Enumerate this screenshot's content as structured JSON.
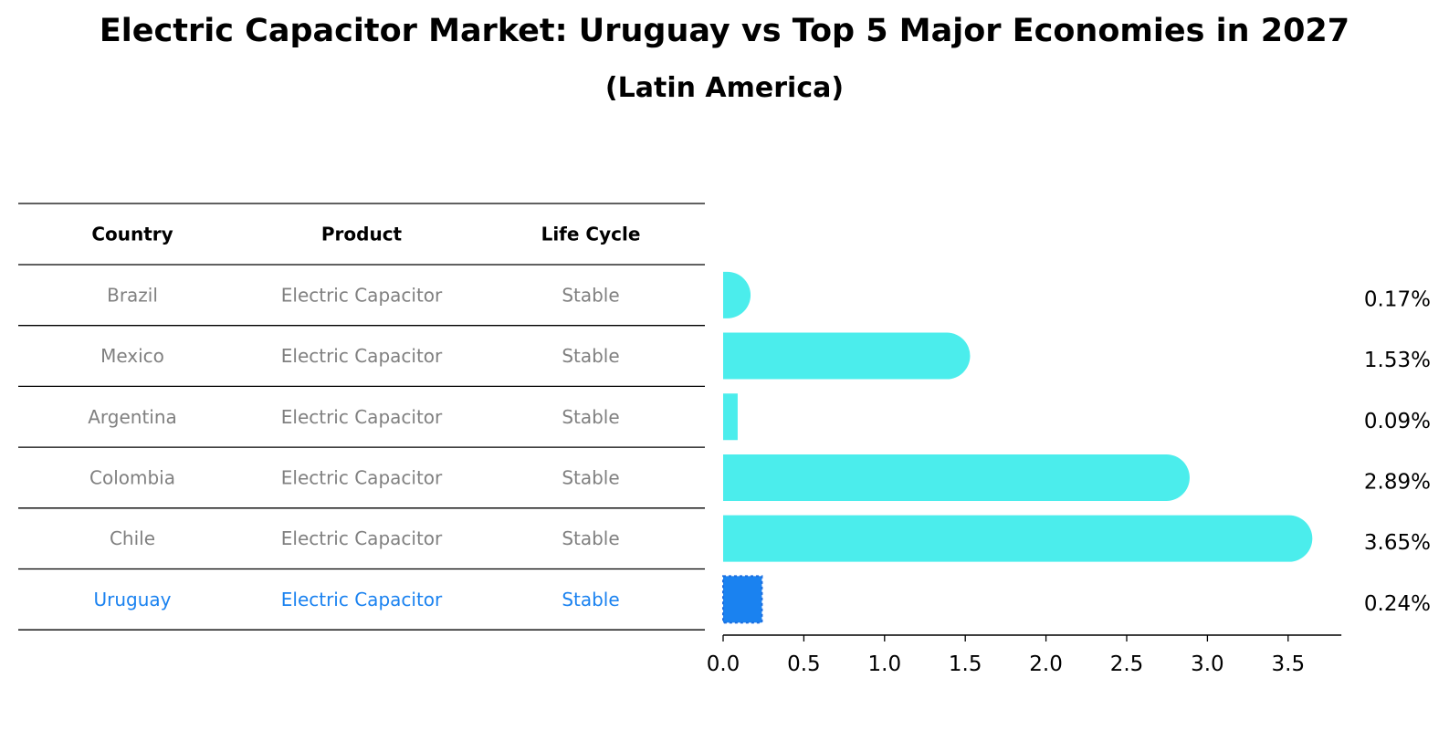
{
  "title": "Electric Capacitor Market: Uruguay vs Top 5 Major Economies in 2027",
  "subtitle": "(Latin America)",
  "colors": {
    "bar": "#4BEDEC",
    "highlight": "#1A82F0",
    "muted_text": "#808080"
  },
  "table": {
    "headers": [
      "Country",
      "Product",
      "Life Cycle"
    ],
    "rows": [
      {
        "country": "Brazil",
        "product": "Electric Capacitor",
        "life_cycle": "Stable",
        "highlight": false
      },
      {
        "country": "Mexico",
        "product": "Electric Capacitor",
        "life_cycle": "Stable",
        "highlight": false
      },
      {
        "country": "Argentina",
        "product": "Electric Capacitor",
        "life_cycle": "Stable",
        "highlight": false
      },
      {
        "country": "Colombia",
        "product": "Electric Capacitor",
        "life_cycle": "Stable",
        "highlight": false
      },
      {
        "country": "Chile",
        "product": "Electric Capacitor",
        "life_cycle": "Stable",
        "highlight": false
      },
      {
        "country": "Uruguay",
        "product": "Electric Capacitor",
        "life_cycle": "Stable",
        "highlight": true
      }
    ]
  },
  "chart_data": {
    "type": "bar",
    "orientation": "horizontal",
    "categories": [
      "Brazil",
      "Mexico",
      "Argentina",
      "Colombia",
      "Chile",
      "Uruguay"
    ],
    "values": [
      0.17,
      1.53,
      0.09,
      2.89,
      3.65,
      0.24
    ],
    "value_labels": [
      "0.17%",
      "1.53%",
      "0.09%",
      "2.89%",
      "3.65%",
      "0.24%"
    ],
    "highlight_category": "Uruguay",
    "xlim": [
      0,
      3.83
    ],
    "xticks": [
      0.0,
      0.5,
      1.0,
      1.5,
      2.0,
      2.5,
      3.0,
      3.5
    ],
    "xtick_labels": [
      "0.0",
      "0.5",
      "1.0",
      "1.5",
      "2.0",
      "2.5",
      "3.0",
      "3.5"
    ],
    "grid": false,
    "xlabel": "",
    "ylabel": ""
  }
}
